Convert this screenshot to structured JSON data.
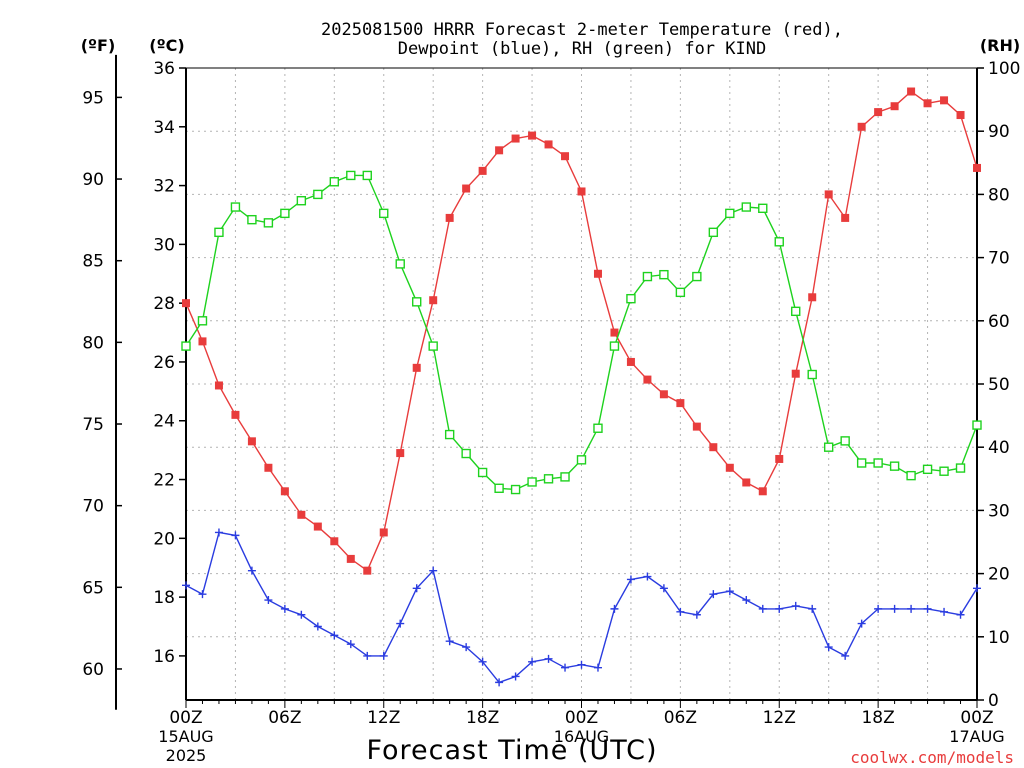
{
  "chart_data": {
    "type": "line",
    "title_line1": "2025081500 HRRR Forecast 2-meter Temperature (red),",
    "title_line2": "Dewpoint (blue), RH (green) for KIND",
    "xlabel": "Forecast Time (UTC)",
    "credit": "coolwx.com/models",
    "units": {
      "fahrenheit": "(ºF)",
      "celsius": "(ºC)",
      "rh": "(RH)"
    },
    "x_ticks": [
      "00Z",
      "06Z",
      "12Z",
      "18Z",
      "00Z",
      "06Z",
      "12Z",
      "18Z",
      "00Z"
    ],
    "x_tick_hours": [
      0,
      6,
      12,
      18,
      24,
      30,
      36,
      42,
      48
    ],
    "x_sub_labels": [
      {
        "hour": 0,
        "lines": [
          "15AUG",
          "2025"
        ]
      },
      {
        "hour": 24,
        "lines": [
          "16AUG"
        ]
      },
      {
        "hour": 48,
        "lines": [
          "17AUG"
        ]
      }
    ],
    "celsius_ticks": [
      "16",
      "18",
      "20",
      "22",
      "24",
      "26",
      "28",
      "30",
      "32",
      "34",
      "36"
    ],
    "celsius_range": [
      14.5,
      36
    ],
    "fahrenheit_ticks": [
      "60",
      "65",
      "70",
      "75",
      "80",
      "85",
      "90",
      "95"
    ],
    "rh_ticks": [
      "0",
      "10",
      "20",
      "30",
      "40",
      "50",
      "60",
      "70",
      "80",
      "90",
      "100"
    ],
    "rh_range": [
      0,
      100
    ],
    "x_range": [
      0,
      48
    ],
    "grid": true,
    "colors": {
      "temperature": "#e83c3c",
      "dewpoint": "#2a3ce0",
      "rh": "#1ed21e"
    },
    "series": [
      {
        "name": "Temperature",
        "axis": "celsius",
        "marker": "square-filled",
        "values": [
          28.0,
          26.7,
          25.2,
          24.2,
          23.3,
          22.4,
          21.6,
          20.8,
          20.4,
          19.9,
          19.3,
          18.9,
          20.2,
          22.9,
          25.8,
          28.1,
          30.9,
          31.9,
          32.5,
          33.2,
          33.6,
          33.7,
          33.4,
          33.0,
          31.8,
          29.0,
          27.0,
          26.0,
          25.4,
          24.9,
          24.6,
          23.8,
          23.1,
          22.4,
          21.9,
          21.6,
          22.7,
          25.6,
          28.2,
          31.7,
          30.9,
          34.0,
          34.5,
          34.7,
          35.2,
          34.8,
          34.9,
          34.4,
          32.6
        ]
      },
      {
        "name": "Dewpoint",
        "axis": "celsius",
        "marker": "plus",
        "values": [
          18.4,
          18.1,
          20.2,
          20.1,
          18.9,
          17.9,
          17.6,
          17.4,
          17.0,
          16.7,
          16.4,
          16.0,
          16.0,
          17.1,
          18.3,
          18.9,
          16.5,
          16.3,
          15.8,
          15.1,
          15.3,
          15.8,
          15.9,
          15.6,
          15.7,
          15.6,
          17.6,
          18.6,
          18.7,
          18.3,
          17.5,
          17.4,
          18.1,
          18.2,
          17.9,
          17.6,
          17.6,
          17.7,
          17.6,
          16.3,
          16.0,
          17.1,
          17.6,
          17.6,
          17.6,
          17.6,
          17.5,
          17.4,
          18.3
        ]
      },
      {
        "name": "RH",
        "axis": "rh",
        "marker": "square-open",
        "values": [
          56,
          60,
          74,
          78,
          76,
          75.5,
          77,
          79,
          80,
          82,
          83,
          83,
          77,
          69,
          63,
          56,
          42,
          39,
          36,
          33.5,
          33.3,
          34.5,
          35,
          35.3,
          38,
          43,
          56,
          63.5,
          67,
          67.3,
          64.5,
          67,
          74,
          77,
          78,
          77.8,
          72.5,
          61.5,
          51.5,
          40,
          41,
          37.5,
          37.5,
          37,
          35.5,
          36.5,
          36.2,
          36.7,
          43.5
        ]
      }
    ]
  }
}
